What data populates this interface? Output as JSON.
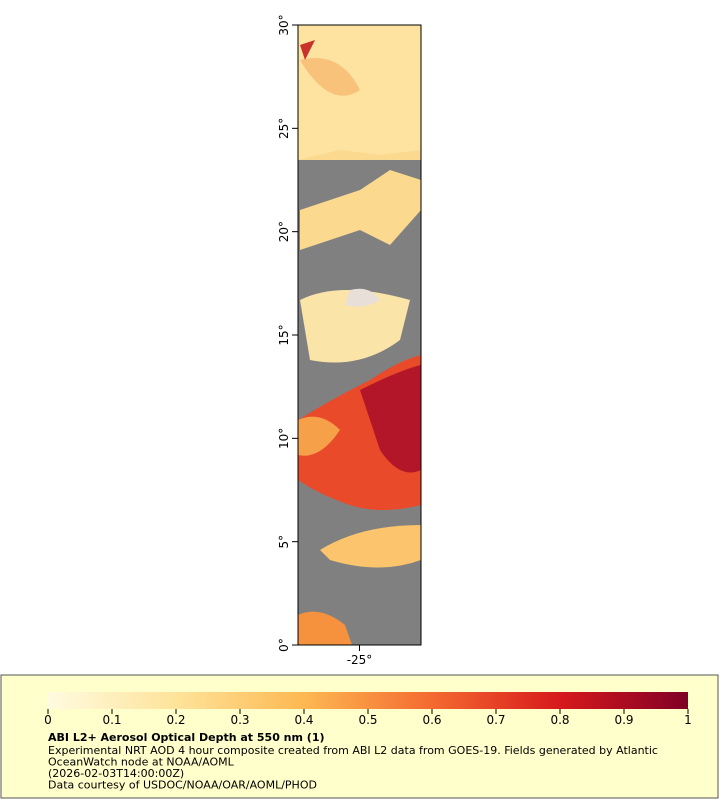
{
  "map": {
    "ylim": [
      0,
      30
    ],
    "xlim": [
      -28,
      -22
    ],
    "lat_ticks": [
      {
        "value": 0,
        "label": "0°"
      },
      {
        "value": 5,
        "label": "5°"
      },
      {
        "value": 10,
        "label": "10°"
      },
      {
        "value": 15,
        "label": "15°"
      },
      {
        "value": 20,
        "label": "20°"
      },
      {
        "value": 25,
        "label": "25°"
      },
      {
        "value": 30,
        "label": "30°"
      }
    ],
    "lon_ticks": [
      {
        "value": -25,
        "label": "-25°"
      }
    ]
  },
  "colorbar": {
    "lim": [
      0,
      1
    ],
    "ticks": [
      0,
      0.1,
      0.2,
      0.3,
      0.4,
      0.5,
      0.6,
      0.7,
      0.8,
      0.9,
      1
    ]
  },
  "caption": {
    "title": "ABI L2+ Aerosol Optical Depth at 550 nm (1)",
    "lines": [
      "Experimental NRT AOD 4 hour composite created from ABI L2 data from GOES-19. Fields generated by Atlantic",
      "OceanWatch node at NOAA/AOML",
      "(2026-02-03T14:00:00Z)",
      "Data courtesy of USDOC/NOAA/OAR/AOML/PHOD"
    ]
  }
}
